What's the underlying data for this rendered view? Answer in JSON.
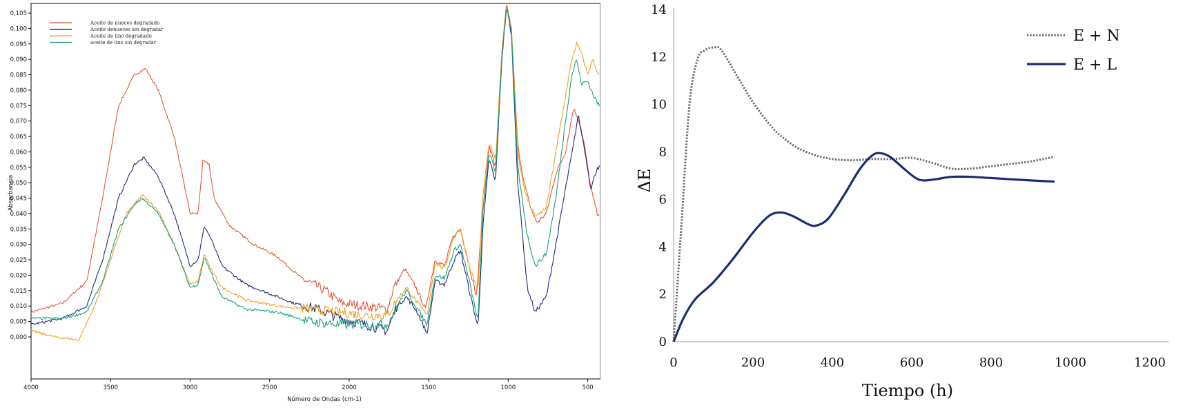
{
  "chart_data": [
    {
      "type": "line",
      "xlabel": "Número de Ondas (cm-1)",
      "ylabel": "Absorbancia",
      "x_ticks": [
        "4000",
        "3500",
        "3000",
        "2500",
        "2000",
        "1500",
        "1000",
        "500"
      ],
      "y_ticks": [
        "0,000",
        "0,005",
        "0,010",
        "0,015",
        "0,020",
        "0,025",
        "0,030",
        "0,035",
        "0,040",
        "0,045",
        "0,050",
        "0,055",
        "0,060",
        "0,065",
        "0,070",
        "0,075",
        "0,080",
        "0,085",
        "0,090",
        "0,095",
        "0,100",
        "0,105"
      ],
      "xlim": [
        4000,
        420
      ],
      "ylim": [
        -0.003,
        0.108
      ],
      "legend_position": "top-left",
      "series": [
        {
          "name": "Aceite de nueces degradado",
          "color": "#e8553a",
          "points": [
            [
              4000,
              0.008
            ],
            [
              3800,
              0.011
            ],
            [
              3650,
              0.018
            ],
            [
              3550,
              0.045
            ],
            [
              3450,
              0.075
            ],
            [
              3350,
              0.085
            ],
            [
              3280,
              0.087
            ],
            [
              3200,
              0.08
            ],
            [
              3100,
              0.065
            ],
            [
              3000,
              0.04
            ],
            [
              2950,
              0.04
            ],
            [
              2920,
              0.057
            ],
            [
              2880,
              0.056
            ],
            [
              2850,
              0.045
            ],
            [
              2750,
              0.036
            ],
            [
              2600,
              0.03
            ],
            [
              2450,
              0.026
            ],
            [
              2300,
              0.019
            ],
            [
              2150,
              0.015
            ],
            [
              2050,
              0.011
            ],
            [
              1900,
              0.01
            ],
            [
              1760,
              0.009
            ],
            [
              1720,
              0.016
            ],
            [
              1650,
              0.022
            ],
            [
              1580,
              0.016
            ],
            [
              1520,
              0.009
            ],
            [
              1460,
              0.025
            ],
            [
              1400,
              0.023
            ],
            [
              1350,
              0.032
            ],
            [
              1300,
              0.035
            ],
            [
              1240,
              0.022
            ],
            [
              1200,
              0.013
            ],
            [
              1160,
              0.041
            ],
            [
              1120,
              0.062
            ],
            [
              1080,
              0.055
            ],
            [
              1040,
              0.092
            ],
            [
              1010,
              0.108
            ],
            [
              980,
              0.1
            ],
            [
              940,
              0.062
            ],
            [
              900,
              0.05
            ],
            [
              860,
              0.042
            ],
            [
              820,
              0.037
            ],
            [
              760,
              0.04
            ],
            [
              700,
              0.053
            ],
            [
              640,
              0.06
            ],
            [
              590,
              0.074
            ],
            [
              560,
              0.071
            ],
            [
              520,
              0.062
            ],
            [
              480,
              0.048
            ],
            [
              440,
              0.04
            ]
          ]
        },
        {
          "name": "Aceite denueces sin degradar",
          "color": "#1f2a78",
          "points": [
            [
              4000,
              0.004
            ],
            [
              3800,
              0.006
            ],
            [
              3650,
              0.01
            ],
            [
              3550,
              0.025
            ],
            [
              3450,
              0.045
            ],
            [
              3350,
              0.056
            ],
            [
              3290,
              0.058
            ],
            [
              3200,
              0.052
            ],
            [
              3100,
              0.04
            ],
            [
              3000,
              0.023
            ],
            [
              2950,
              0.025
            ],
            [
              2910,
              0.036
            ],
            [
              2870,
              0.032
            ],
            [
              2800,
              0.023
            ],
            [
              2650,
              0.017
            ],
            [
              2500,
              0.014
            ],
            [
              2350,
              0.011
            ],
            [
              2200,
              0.009
            ],
            [
              2050,
              0.006
            ],
            [
              1900,
              0.004
            ],
            [
              1760,
              0.002
            ],
            [
              1700,
              0.01
            ],
            [
              1640,
              0.013
            ],
            [
              1570,
              0.008
            ],
            [
              1510,
              0.001
            ],
            [
              1460,
              0.018
            ],
            [
              1400,
              0.017
            ],
            [
              1340,
              0.025
            ],
            [
              1300,
              0.028
            ],
            [
              1240,
              0.014
            ],
            [
              1190,
              0.003
            ],
            [
              1160,
              0.035
            ],
            [
              1120,
              0.058
            ],
            [
              1080,
              0.05
            ],
            [
              1040,
              0.09
            ],
            [
              1010,
              0.107
            ],
            [
              980,
              0.098
            ],
            [
              940,
              0.05
            ],
            [
              880,
              0.016
            ],
            [
              830,
              0.008
            ],
            [
              760,
              0.013
            ],
            [
              700,
              0.03
            ],
            [
              640,
              0.048
            ],
            [
              590,
              0.062
            ],
            [
              560,
              0.072
            ],
            [
              520,
              0.061
            ],
            [
              480,
              0.048
            ],
            [
              440,
              0.055
            ]
          ]
        },
        {
          "name": "Aceite de lino degradado",
          "color": "#f0a020",
          "points": [
            [
              4000,
              0.002
            ],
            [
              3850,
              0.0
            ],
            [
              3700,
              -0.001
            ],
            [
              3600,
              0.01
            ],
            [
              3500,
              0.025
            ],
            [
              3400,
              0.04
            ],
            [
              3300,
              0.046
            ],
            [
              3200,
              0.041
            ],
            [
              3100,
              0.03
            ],
            [
              3000,
              0.017
            ],
            [
              2950,
              0.018
            ],
            [
              2910,
              0.027
            ],
            [
              2870,
              0.022
            ],
            [
              2800,
              0.016
            ],
            [
              2650,
              0.012
            ],
            [
              2450,
              0.01
            ],
            [
              2250,
              0.009
            ],
            [
              2050,
              0.008
            ],
            [
              1900,
              0.007
            ],
            [
              1760,
              0.007
            ],
            [
              1700,
              0.012
            ],
            [
              1640,
              0.016
            ],
            [
              1570,
              0.011
            ],
            [
              1510,
              0.007
            ],
            [
              1460,
              0.024
            ],
            [
              1400,
              0.022
            ],
            [
              1340,
              0.033
            ],
            [
              1300,
              0.035
            ],
            [
              1240,
              0.022
            ],
            [
              1190,
              0.015
            ],
            [
              1160,
              0.045
            ],
            [
              1120,
              0.063
            ],
            [
              1080,
              0.057
            ],
            [
              1040,
              0.092
            ],
            [
              1010,
              0.107
            ],
            [
              980,
              0.1
            ],
            [
              940,
              0.06
            ],
            [
              900,
              0.048
            ],
            [
              860,
              0.042
            ],
            [
              820,
              0.039
            ],
            [
              760,
              0.042
            ],
            [
              700,
              0.06
            ],
            [
              640,
              0.078
            ],
            [
              600,
              0.09
            ],
            [
              570,
              0.095
            ],
            [
              540,
              0.092
            ],
            [
              500,
              0.085
            ],
            [
              470,
              0.09
            ],
            [
              430,
              0.085
            ]
          ]
        },
        {
          "name": "aceite de lino sin degradar",
          "color": "#1aa07a",
          "points": [
            [
              4000,
              0.006
            ],
            [
              3800,
              0.006
            ],
            [
              3650,
              0.008
            ],
            [
              3550,
              0.018
            ],
            [
              3450,
              0.035
            ],
            [
              3350,
              0.043
            ],
            [
              3300,
              0.045
            ],
            [
              3200,
              0.04
            ],
            [
              3100,
              0.03
            ],
            [
              3000,
              0.016
            ],
            [
              2950,
              0.017
            ],
            [
              2910,
              0.026
            ],
            [
              2870,
              0.021
            ],
            [
              2800,
              0.013
            ],
            [
              2650,
              0.009
            ],
            [
              2450,
              0.008
            ],
            [
              2250,
              0.005
            ],
            [
              2050,
              0.004
            ],
            [
              1900,
              0.004
            ],
            [
              1760,
              0.004
            ],
            [
              1700,
              0.01
            ],
            [
              1640,
              0.015
            ],
            [
              1570,
              0.009
            ],
            [
              1510,
              0.004
            ],
            [
              1460,
              0.02
            ],
            [
              1400,
              0.019
            ],
            [
              1340,
              0.028
            ],
            [
              1300,
              0.03
            ],
            [
              1240,
              0.017
            ],
            [
              1190,
              0.005
            ],
            [
              1160,
              0.04
            ],
            [
              1120,
              0.06
            ],
            [
              1080,
              0.053
            ],
            [
              1040,
              0.091
            ],
            [
              1010,
              0.107
            ],
            [
              980,
              0.099
            ],
            [
              940,
              0.055
            ],
            [
              880,
              0.033
            ],
            [
              830,
              0.023
            ],
            [
              760,
              0.027
            ],
            [
              700,
              0.045
            ],
            [
              640,
              0.07
            ],
            [
              600,
              0.085
            ],
            [
              570,
              0.09
            ],
            [
              540,
              0.082
            ],
            [
              500,
              0.083
            ],
            [
              470,
              0.079
            ],
            [
              430,
              0.075
            ]
          ]
        }
      ]
    },
    {
      "type": "line",
      "xlabel": "Tiempo (h)",
      "ylabel": "ΔE",
      "x_ticks": [
        "0",
        "200",
        "400",
        "600",
        "800",
        "1000",
        "1200"
      ],
      "y_ticks": [
        "0",
        "2",
        "4",
        "6",
        "8",
        "10",
        "12",
        "14"
      ],
      "xlim": [
        0,
        1200
      ],
      "ylim": [
        0,
        14
      ],
      "legend_position": "top-right",
      "series": [
        {
          "name": "E + N",
          "color": "#666666",
          "style": "dotted",
          "points": [
            [
              0,
              0
            ],
            [
              20,
              5
            ],
            [
              40,
              10
            ],
            [
              60,
              11.9
            ],
            [
              80,
              12.3
            ],
            [
              100,
              12.4
            ],
            [
              120,
              12.3
            ],
            [
              160,
              11.2
            ],
            [
              200,
              10.1
            ],
            [
              250,
              9.0
            ],
            [
              300,
              8.3
            ],
            [
              350,
              7.9
            ],
            [
              400,
              7.7
            ],
            [
              450,
              7.65
            ],
            [
              500,
              7.7
            ],
            [
              550,
              7.7
            ],
            [
              600,
              7.75
            ],
            [
              650,
              7.55
            ],
            [
              700,
              7.3
            ],
            [
              750,
              7.3
            ],
            [
              800,
              7.4
            ],
            [
              850,
              7.5
            ],
            [
              900,
              7.6
            ],
            [
              960,
              7.8
            ]
          ]
        },
        {
          "name": "E + L",
          "color": "#1b2d72",
          "style": "solid",
          "points": [
            [
              0,
              0
            ],
            [
              25,
              1
            ],
            [
              55,
              1.8
            ],
            [
              100,
              2.5
            ],
            [
              150,
              3.5
            ],
            [
              200,
              4.6
            ],
            [
              240,
              5.3
            ],
            [
              270,
              5.45
            ],
            [
              300,
              5.3
            ],
            [
              340,
              4.95
            ],
            [
              360,
              4.9
            ],
            [
              390,
              5.2
            ],
            [
              430,
              6.2
            ],
            [
              470,
              7.3
            ],
            [
              500,
              7.85
            ],
            [
              520,
              7.95
            ],
            [
              545,
              7.8
            ],
            [
              580,
              7.3
            ],
            [
              610,
              6.9
            ],
            [
              630,
              6.8
            ],
            [
              660,
              6.85
            ],
            [
              700,
              6.95
            ],
            [
              750,
              6.95
            ],
            [
              800,
              6.9
            ],
            [
              850,
              6.85
            ],
            [
              900,
              6.8
            ],
            [
              960,
              6.75
            ]
          ]
        }
      ]
    }
  ]
}
